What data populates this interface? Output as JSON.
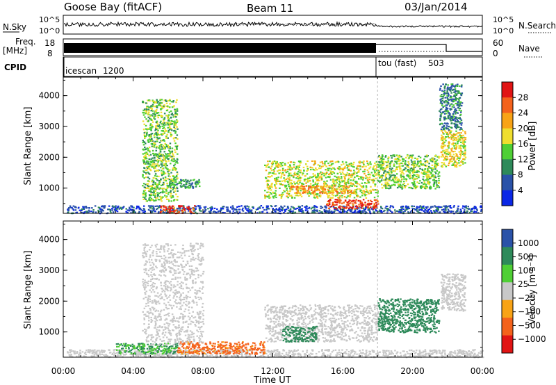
{
  "header": {
    "station": "Goose Bay (fitACF)",
    "beam": "Beam 11",
    "date": "03/Jan/2014"
  },
  "strip_nsky": {
    "label": "N.Sky",
    "right_label": "N.Search",
    "left_ticks": [
      "10^5",
      "10^0"
    ],
    "right_ticks": [
      "10^5",
      "10^0"
    ]
  },
  "strip_freq": {
    "label_line1": "Freq.",
    "label_line2": "[MHz]",
    "left_ticks": [
      "18",
      "8"
    ],
    "right_ticks": [
      "60",
      "0"
    ],
    "right_label": "Nave"
  },
  "strip_cpid": {
    "label": "CPID",
    "programs": [
      {
        "name": "icescan",
        "id": "1200",
        "start_hour": 0
      },
      {
        "name": "tou (fast)",
        "id": "503",
        "start_hour": 18
      }
    ]
  },
  "colors": {
    "power": [
      "#0b27e6",
      "#2a52a8",
      "#2e8a5a",
      "#4fcf35",
      "#efde2f",
      "#f8a316",
      "#f4621c",
      "#e11414"
    ],
    "velocity": [
      "#e11414",
      "#f4621c",
      "#f8a316",
      "#c8c8c8",
      "#4fcf35",
      "#2e8a5a",
      "#2a52a8"
    ]
  },
  "chart_data": [
    {
      "type": "heatmap",
      "panel": "power",
      "ylabel": "Slant Range [km]",
      "xlabel": "",
      "yticks": [
        1000,
        2000,
        3000,
        4000
      ],
      "ylim": [
        180,
        4600
      ],
      "xlim": [
        0,
        24
      ],
      "colorbar": {
        "label": "Power [dB]",
        "ticks": [
          "28",
          "24",
          "20",
          "16",
          "12",
          "8",
          "4"
        ],
        "range": [
          0,
          32
        ]
      },
      "echo_regions": [
        {
          "t0": 0.2,
          "t1": 24,
          "r0": 200,
          "r1": 450,
          "level": 5
        },
        {
          "t0": 5.5,
          "t1": 7.5,
          "r0": 200,
          "r1": 450,
          "level": 28
        },
        {
          "t0": 6.0,
          "t1": 7.8,
          "r0": 1000,
          "r1": 1300,
          "level": 11
        },
        {
          "t0": 4.5,
          "t1": 6.5,
          "r0": 600,
          "r1": 3900,
          "level": 14
        },
        {
          "t0": 11.5,
          "t1": 18.0,
          "r0": 700,
          "r1": 1900,
          "level": 17
        },
        {
          "t0": 13.0,
          "t1": 16.5,
          "r0": 850,
          "r1": 1100,
          "level": 23
        },
        {
          "t0": 15.0,
          "t1": 18.0,
          "r0": 350,
          "r1": 650,
          "level": 28
        },
        {
          "t0": 18.0,
          "t1": 21.5,
          "r0": 1000,
          "r1": 2100,
          "level": 15
        },
        {
          "t0": 21.6,
          "t1": 23.0,
          "r0": 1700,
          "r1": 2900,
          "level": 18
        },
        {
          "t0": 21.5,
          "t1": 22.8,
          "r0": 2900,
          "r1": 4400,
          "level": 9
        }
      ]
    },
    {
      "type": "heatmap",
      "panel": "velocity",
      "ylabel": "Slant Range [km]",
      "xlabel": "Time UT",
      "yticks": [
        1000,
        2000,
        3000,
        4000
      ],
      "ylim": [
        180,
        4600
      ],
      "xticks": [
        "00:00",
        "04:00",
        "08:00",
        "12:00",
        "16:00",
        "20:00",
        "00:00"
      ],
      "xlim": [
        0,
        24
      ],
      "colorbar": {
        "label": "Velocity [m s⁻¹]",
        "ticks": [
          "1000",
          "500",
          "100",
          "25",
          "−25",
          "−100",
          "−500",
          "−1000"
        ]
      },
      "echo_regions": [
        {
          "t0": 0.2,
          "t1": 24,
          "r0": 200,
          "r1": 450,
          "level": 0
        },
        {
          "t0": 3.0,
          "t1": 6.5,
          "r0": 300,
          "r1": 650,
          "level": 100
        },
        {
          "t0": 6.5,
          "t1": 11.5,
          "r0": 300,
          "r1": 700,
          "level": -150
        },
        {
          "t0": 4.5,
          "t1": 8.0,
          "r0": 600,
          "r1": 3900,
          "level": 0
        },
        {
          "t0": 11.5,
          "t1": 18.0,
          "r0": 700,
          "r1": 1900,
          "level": 0
        },
        {
          "t0": 12.5,
          "t1": 14.5,
          "r0": 700,
          "r1": 1200,
          "level": 300
        },
        {
          "t0": 18.0,
          "t1": 21.5,
          "r0": 1000,
          "r1": 2100,
          "level": 300
        },
        {
          "t0": 21.6,
          "t1": 23.0,
          "r0": 1700,
          "r1": 2900,
          "level": 0
        }
      ]
    }
  ]
}
